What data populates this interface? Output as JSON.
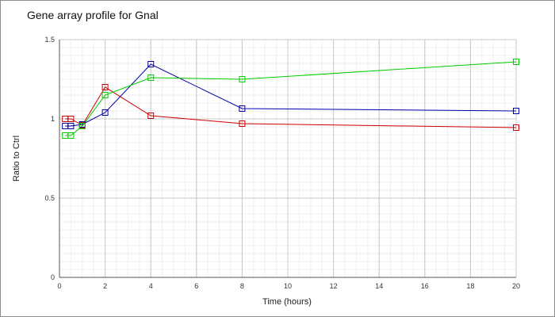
{
  "chart_data": {
    "type": "line",
    "title": "Gene array profile for Gnal",
    "xlabel": "Time (hours)",
    "ylabel": "Ratio to Ctrl",
    "xlim": [
      0,
      20
    ],
    "ylim": [
      0,
      1.5
    ],
    "x_ticks": [
      0,
      2,
      4,
      6,
      8,
      10,
      12,
      14,
      16,
      18,
      20
    ],
    "y_ticks": [
      0,
      0.5,
      1,
      1.5
    ],
    "x_tick_labels": [
      "0",
      "2",
      "4",
      "6",
      "8",
      "10",
      "12",
      "14",
      "16",
      "18",
      "20"
    ],
    "y_tick_labels": [
      "0",
      "0.5",
      "1",
      "1.5"
    ],
    "grid": true,
    "legend": "none",
    "marker": "open-square",
    "series": [
      {
        "color": "#cc0000",
        "x": [
          0.25,
          0.5,
          1,
          2,
          4,
          8,
          20
        ],
        "y": [
          1.0,
          1.0,
          0.96,
          1.2,
          1.02,
          0.97,
          0.945
        ]
      },
      {
        "color": "#0000aa",
        "x": [
          0.25,
          0.5,
          1,
          2,
          4,
          8,
          20
        ],
        "y": [
          0.955,
          0.955,
          0.965,
          1.04,
          1.345,
          1.065,
          1.05
        ]
      },
      {
        "color": "#00cc00",
        "x": [
          0.25,
          0.5,
          1,
          2,
          4,
          8,
          20
        ],
        "y": [
          0.895,
          0.895,
          0.955,
          1.15,
          1.26,
          1.25,
          1.36
        ]
      }
    ]
  }
}
